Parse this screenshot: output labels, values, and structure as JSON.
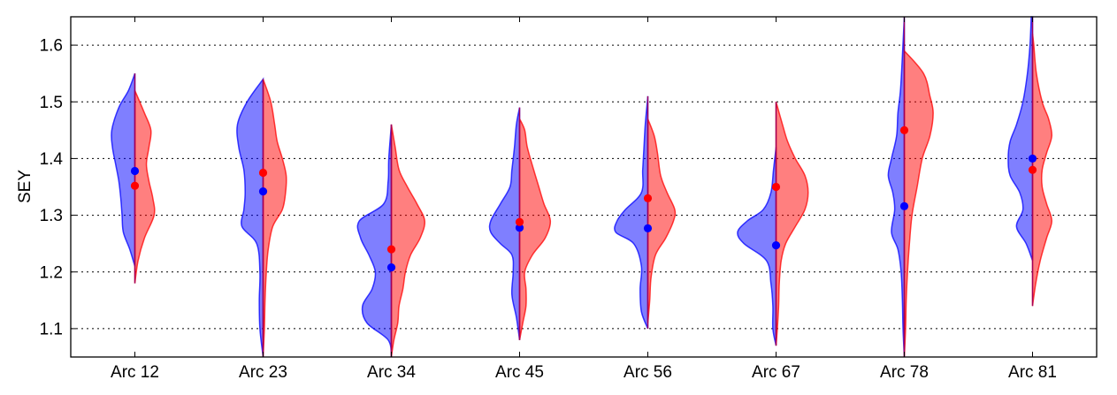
{
  "chart_data": {
    "type": "violin",
    "title": "",
    "xlabel": "",
    "ylabel": "SEY",
    "ylim": [
      1.05,
      1.65
    ],
    "yticks": [
      1.1,
      1.2,
      1.3,
      1.4,
      1.5,
      1.6
    ],
    "ytick_labels": [
      "1.1",
      "1.2",
      "1.3",
      "1.4",
      "1.5",
      "1.6"
    ],
    "grid": "horizontal dotted",
    "categories": [
      "Arc 12",
      "Arc 23",
      "Arc 34",
      "Arc 45",
      "Arc 56",
      "Arc 67",
      "Arc 78",
      "Arc 81"
    ],
    "series": [
      {
        "name": "left (blue)",
        "side": "left",
        "color": "#0000ff",
        "fill_opacity": 0.5,
        "medians": [
          1.378,
          1.342,
          1.208,
          1.278,
          1.277,
          1.247,
          1.316,
          1.4
        ],
        "ranges": [
          [
            1.21,
            1.55
          ],
          [
            1.05,
            1.54
          ],
          [
            1.05,
            1.46
          ],
          [
            1.08,
            1.49
          ],
          [
            1.1,
            1.51
          ],
          [
            1.07,
            1.42
          ],
          [
            1.05,
            1.65
          ],
          [
            1.22,
            1.65
          ]
        ],
        "density": [
          [
            [
              1.21,
              0.0
            ],
            [
              1.24,
              0.08
            ],
            [
              1.27,
              0.18
            ],
            [
              1.3,
              0.2
            ],
            [
              1.33,
              0.22
            ],
            [
              1.36,
              0.25
            ],
            [
              1.39,
              0.3
            ],
            [
              1.42,
              0.35
            ],
            [
              1.45,
              0.36
            ],
            [
              1.49,
              0.25
            ],
            [
              1.52,
              0.1
            ],
            [
              1.55,
              0.0
            ]
          ],
          [
            [
              1.05,
              0.0
            ],
            [
              1.1,
              0.05
            ],
            [
              1.15,
              0.06
            ],
            [
              1.2,
              0.05
            ],
            [
              1.25,
              0.1
            ],
            [
              1.28,
              0.33
            ],
            [
              1.31,
              0.3
            ],
            [
              1.34,
              0.28
            ],
            [
              1.38,
              0.3
            ],
            [
              1.42,
              0.38
            ],
            [
              1.46,
              0.4
            ],
            [
              1.5,
              0.25
            ],
            [
              1.54,
              0.0
            ]
          ],
          [
            [
              1.05,
              0.0
            ],
            [
              1.08,
              0.05
            ],
            [
              1.11,
              0.38
            ],
            [
              1.14,
              0.45
            ],
            [
              1.17,
              0.3
            ],
            [
              1.2,
              0.25
            ],
            [
              1.23,
              0.35
            ],
            [
              1.26,
              0.48
            ],
            [
              1.29,
              0.5
            ],
            [
              1.32,
              0.12
            ],
            [
              1.36,
              0.05
            ],
            [
              1.4,
              0.04
            ],
            [
              1.46,
              0.0
            ]
          ],
          [
            [
              1.08,
              0.0
            ],
            [
              1.12,
              0.05
            ],
            [
              1.16,
              0.12
            ],
            [
              1.2,
              0.1
            ],
            [
              1.23,
              0.12
            ],
            [
              1.25,
              0.3
            ],
            [
              1.27,
              0.45
            ],
            [
              1.29,
              0.45
            ],
            [
              1.32,
              0.3
            ],
            [
              1.35,
              0.15
            ],
            [
              1.38,
              0.12
            ],
            [
              1.42,
              0.08
            ],
            [
              1.46,
              0.05
            ],
            [
              1.49,
              0.0
            ]
          ],
          [
            [
              1.1,
              0.0
            ],
            [
              1.13,
              0.1
            ],
            [
              1.17,
              0.12
            ],
            [
              1.21,
              0.1
            ],
            [
              1.25,
              0.22
            ],
            [
              1.27,
              0.5
            ],
            [
              1.29,
              0.48
            ],
            [
              1.31,
              0.35
            ],
            [
              1.34,
              0.1
            ],
            [
              1.38,
              0.08
            ],
            [
              1.42,
              0.06
            ],
            [
              1.46,
              0.04
            ],
            [
              1.51,
              0.0
            ]
          ],
          [
            [
              1.07,
              0.0
            ],
            [
              1.1,
              0.05
            ],
            [
              1.14,
              0.05
            ],
            [
              1.18,
              0.08
            ],
            [
              1.22,
              0.15
            ],
            [
              1.25,
              0.5
            ],
            [
              1.27,
              0.6
            ],
            [
              1.29,
              0.45
            ],
            [
              1.31,
              0.2
            ],
            [
              1.34,
              0.08
            ],
            [
              1.38,
              0.04
            ],
            [
              1.42,
              0.0
            ]
          ],
          [
            [
              1.05,
              0.0
            ],
            [
              1.1,
              0.02
            ],
            [
              1.15,
              0.03
            ],
            [
              1.2,
              0.05
            ],
            [
              1.24,
              0.1
            ],
            [
              1.27,
              0.2
            ],
            [
              1.31,
              0.15
            ],
            [
              1.34,
              0.18
            ],
            [
              1.37,
              0.25
            ],
            [
              1.4,
              0.2
            ],
            [
              1.44,
              0.12
            ],
            [
              1.48,
              0.1
            ],
            [
              1.52,
              0.06
            ],
            [
              1.58,
              0.03
            ],
            [
              1.65,
              0.0
            ]
          ],
          [
            [
              1.22,
              0.0
            ],
            [
              1.25,
              0.1
            ],
            [
              1.28,
              0.25
            ],
            [
              1.31,
              0.15
            ],
            [
              1.34,
              0.2
            ],
            [
              1.37,
              0.35
            ],
            [
              1.4,
              0.38
            ],
            [
              1.43,
              0.35
            ],
            [
              1.46,
              0.25
            ],
            [
              1.5,
              0.15
            ],
            [
              1.55,
              0.08
            ],
            [
              1.6,
              0.04
            ],
            [
              1.65,
              0.02
            ]
          ]
        ]
      },
      {
        "name": "right (red)",
        "side": "right",
        "color": "#ff0000",
        "fill_opacity": 0.5,
        "medians": [
          1.352,
          1.375,
          1.24,
          1.288,
          1.33,
          1.35,
          1.45,
          1.38
        ],
        "ranges": [
          [
            1.18,
            1.52
          ],
          [
            1.05,
            1.54
          ],
          [
            1.05,
            1.46
          ],
          [
            1.08,
            1.47
          ],
          [
            1.11,
            1.47
          ],
          [
            1.07,
            1.5
          ],
          [
            1.05,
            1.59
          ],
          [
            1.14,
            1.62
          ]
        ],
        "density": [
          [
            [
              1.18,
              0.0
            ],
            [
              1.22,
              0.05
            ],
            [
              1.26,
              0.15
            ],
            [
              1.3,
              0.3
            ],
            [
              1.33,
              0.28
            ],
            [
              1.36,
              0.22
            ],
            [
              1.39,
              0.18
            ],
            [
              1.42,
              0.22
            ],
            [
              1.45,
              0.25
            ],
            [
              1.48,
              0.15
            ],
            [
              1.52,
              0.0
            ]
          ],
          [
            [
              1.05,
              0.0
            ],
            [
              1.1,
              0.02
            ],
            [
              1.15,
              0.03
            ],
            [
              1.2,
              0.05
            ],
            [
              1.24,
              0.08
            ],
            [
              1.28,
              0.15
            ],
            [
              1.31,
              0.3
            ],
            [
              1.34,
              0.35
            ],
            [
              1.37,
              0.36
            ],
            [
              1.4,
              0.3
            ],
            [
              1.43,
              0.22
            ],
            [
              1.46,
              0.18
            ],
            [
              1.5,
              0.12
            ],
            [
              1.54,
              0.0
            ]
          ],
          [
            [
              1.05,
              0.0
            ],
            [
              1.08,
              0.04
            ],
            [
              1.11,
              0.1
            ],
            [
              1.14,
              0.12
            ],
            [
              1.17,
              0.18
            ],
            [
              1.2,
              0.22
            ],
            [
              1.23,
              0.3
            ],
            [
              1.26,
              0.45
            ],
            [
              1.29,
              0.52
            ],
            [
              1.32,
              0.4
            ],
            [
              1.35,
              0.25
            ],
            [
              1.38,
              0.12
            ],
            [
              1.42,
              0.06
            ],
            [
              1.46,
              0.0
            ]
          ],
          [
            [
              1.08,
              0.0
            ],
            [
              1.11,
              0.05
            ],
            [
              1.14,
              0.1
            ],
            [
              1.17,
              0.1
            ],
            [
              1.2,
              0.08
            ],
            [
              1.23,
              0.2
            ],
            [
              1.26,
              0.4
            ],
            [
              1.29,
              0.48
            ],
            [
              1.32,
              0.38
            ],
            [
              1.35,
              0.3
            ],
            [
              1.38,
              0.22
            ],
            [
              1.42,
              0.12
            ],
            [
              1.45,
              0.08
            ],
            [
              1.47,
              0.0
            ]
          ],
          [
            [
              1.11,
              0.0
            ],
            [
              1.15,
              0.03
            ],
            [
              1.19,
              0.05
            ],
            [
              1.23,
              0.12
            ],
            [
              1.26,
              0.28
            ],
            [
              1.29,
              0.4
            ],
            [
              1.31,
              0.42
            ],
            [
              1.34,
              0.3
            ],
            [
              1.37,
              0.2
            ],
            [
              1.41,
              0.15
            ],
            [
              1.44,
              0.1
            ],
            [
              1.47,
              0.0
            ]
          ],
          [
            [
              1.07,
              0.0
            ],
            [
              1.1,
              0.02
            ],
            [
              1.14,
              0.04
            ],
            [
              1.18,
              0.05
            ],
            [
              1.22,
              0.08
            ],
            [
              1.25,
              0.15
            ],
            [
              1.28,
              0.3
            ],
            [
              1.31,
              0.45
            ],
            [
              1.34,
              0.5
            ],
            [
              1.37,
              0.45
            ],
            [
              1.4,
              0.3
            ],
            [
              1.43,
              0.18
            ],
            [
              1.46,
              0.1
            ],
            [
              1.5,
              0.0
            ]
          ],
          [
            [
              1.05,
              0.0
            ],
            [
              1.1,
              0.02
            ],
            [
              1.15,
              0.03
            ],
            [
              1.2,
              0.05
            ],
            [
              1.25,
              0.08
            ],
            [
              1.3,
              0.12
            ],
            [
              1.35,
              0.2
            ],
            [
              1.4,
              0.28
            ],
            [
              1.44,
              0.4
            ],
            [
              1.48,
              0.45
            ],
            [
              1.51,
              0.4
            ],
            [
              1.55,
              0.3
            ],
            [
              1.59,
              0.0
            ]
          ],
          [
            [
              1.14,
              0.0
            ],
            [
              1.18,
              0.05
            ],
            [
              1.22,
              0.12
            ],
            [
              1.26,
              0.22
            ],
            [
              1.29,
              0.3
            ],
            [
              1.32,
              0.22
            ],
            [
              1.35,
              0.15
            ],
            [
              1.38,
              0.15
            ],
            [
              1.41,
              0.22
            ],
            [
              1.44,
              0.3
            ],
            [
              1.47,
              0.25
            ],
            [
              1.5,
              0.15
            ],
            [
              1.55,
              0.06
            ],
            [
              1.6,
              0.02
            ],
            [
              1.62,
              0.0
            ]
          ]
        ]
      }
    ]
  }
}
